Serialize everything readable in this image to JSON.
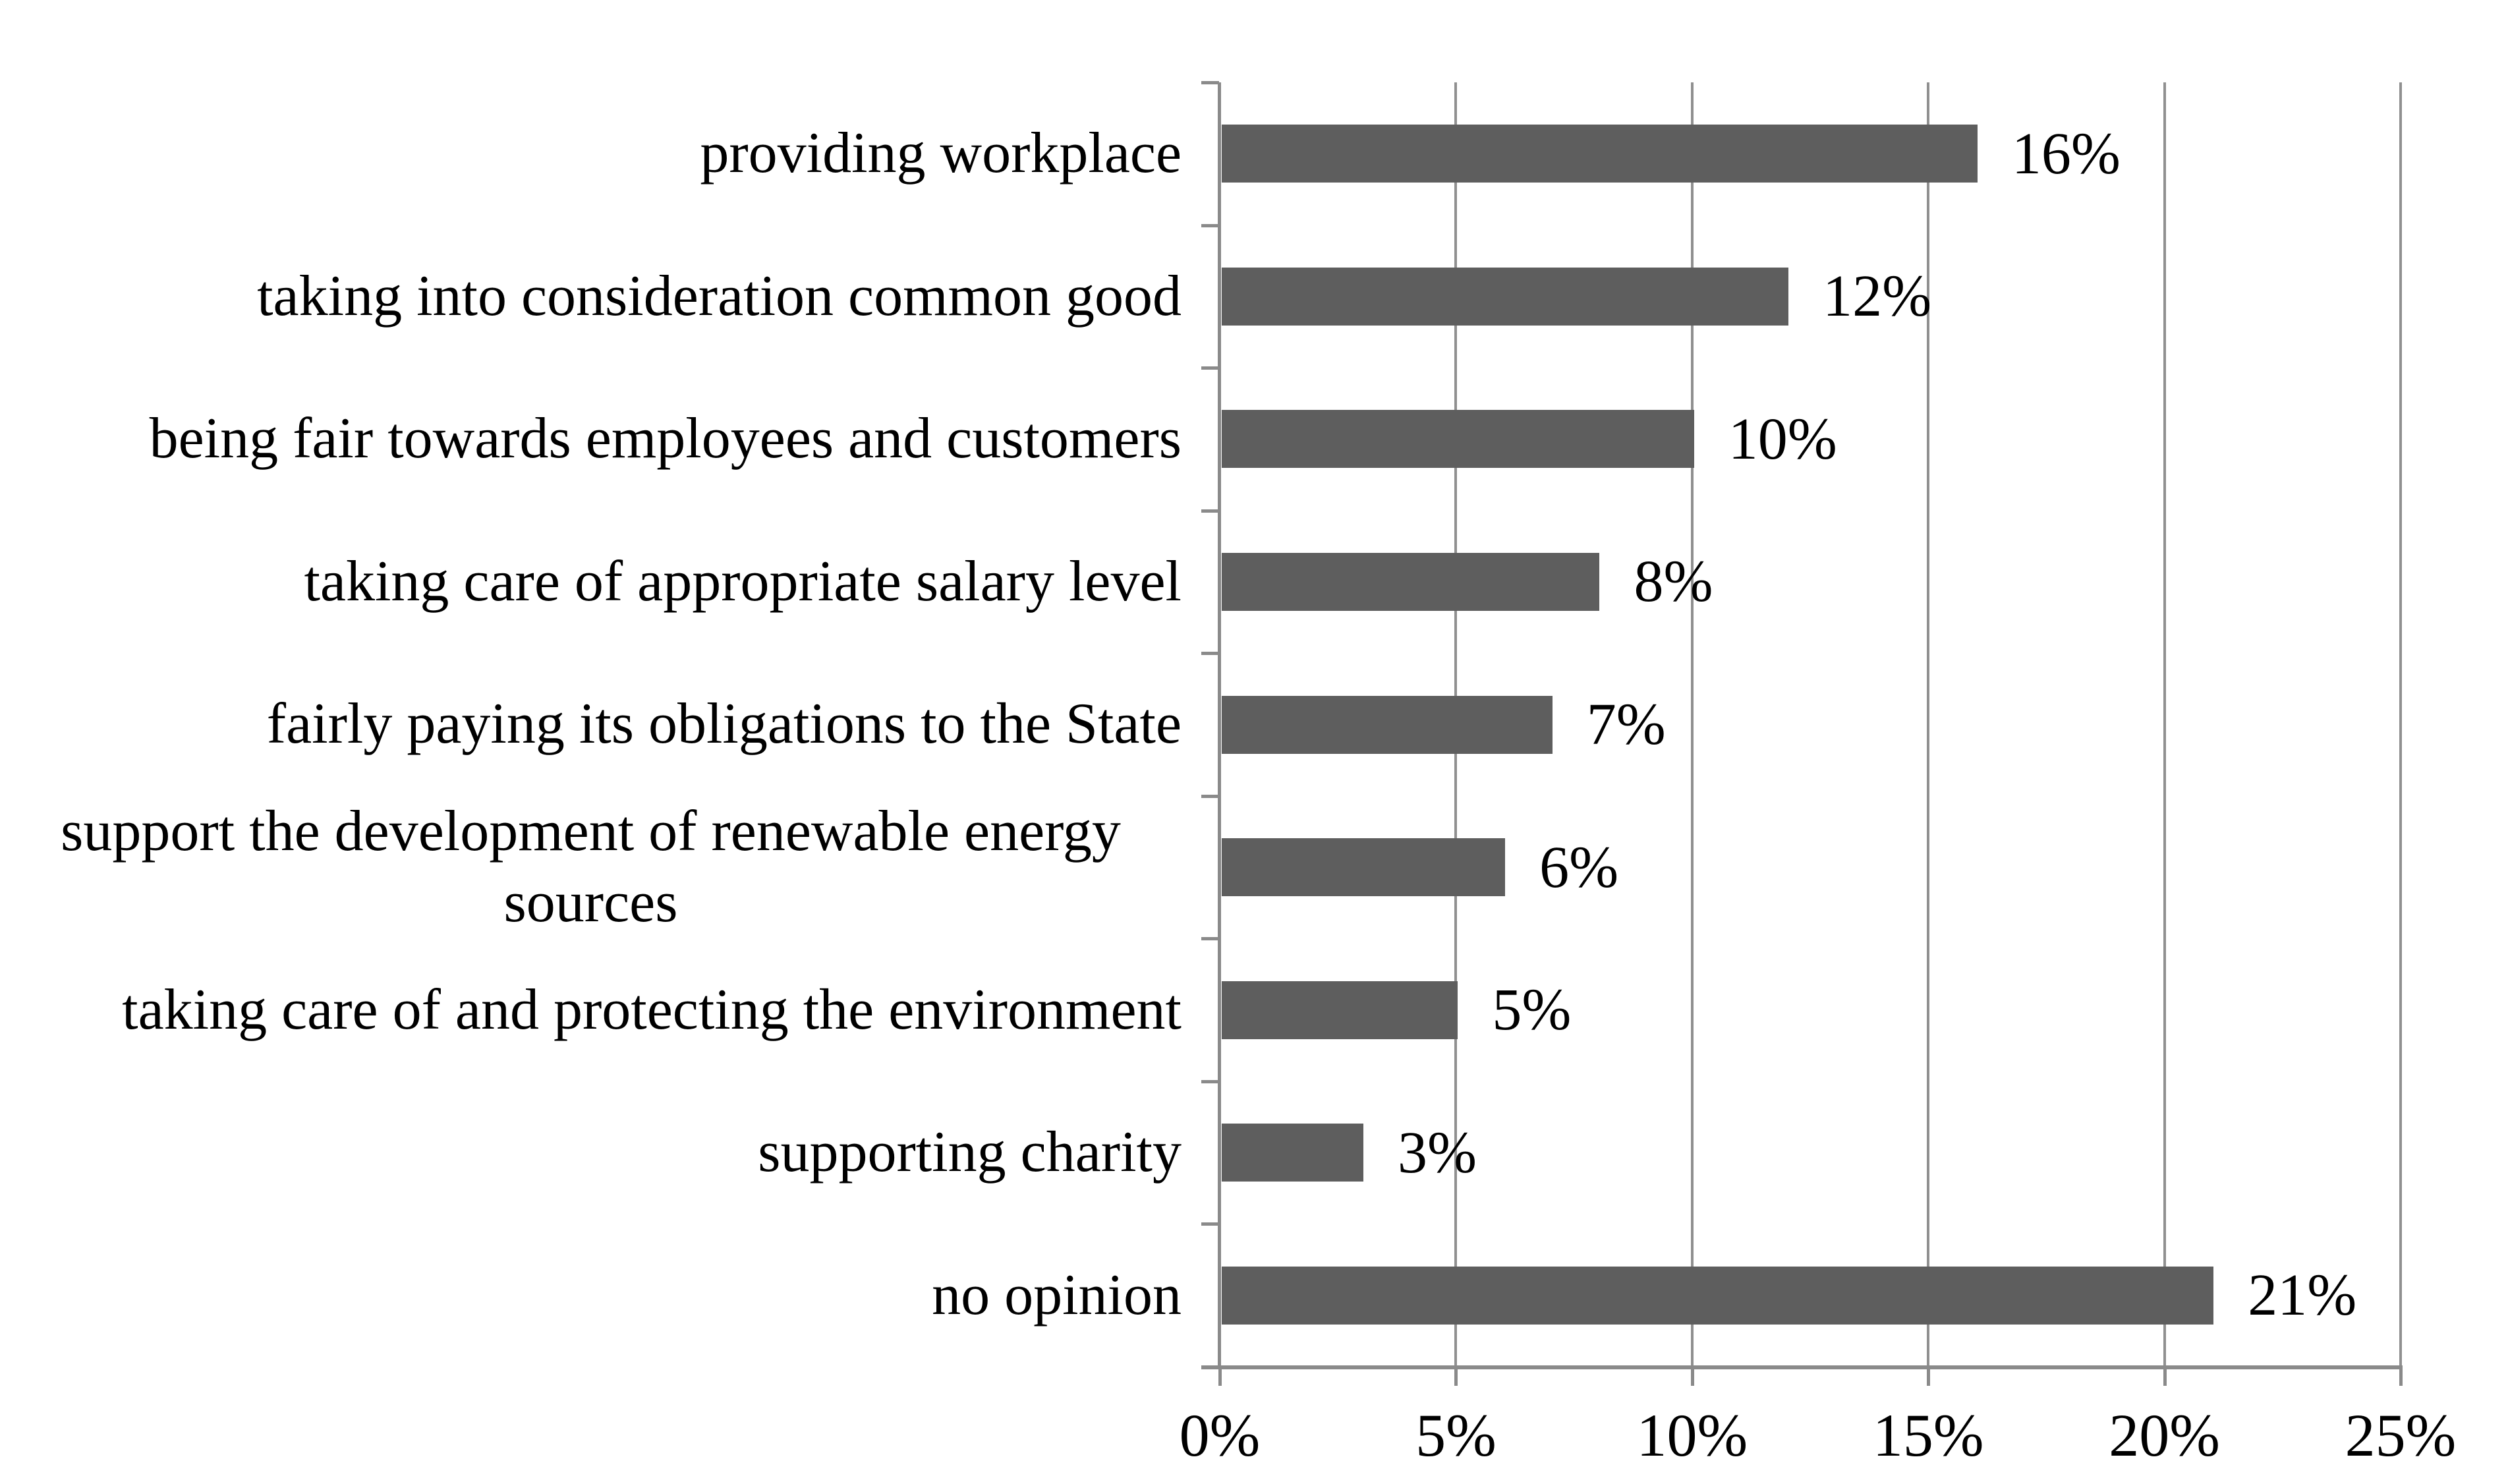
{
  "chart_data": {
    "type": "bar",
    "orientation": "horizontal",
    "title": "",
    "xlabel": "",
    "ylabel": "",
    "categories": [
      "providing workplace",
      "taking into consideration common good",
      "being fair towards employees and customers",
      "taking care of appropriate salary level",
      "fairly paying its obligations to the State",
      "support the development of renewable energy\nsources",
      "taking care of and protecting the environment",
      "supporting charity",
      "no opinion"
    ],
    "values": [
      16,
      12,
      10,
      8,
      7,
      6,
      5,
      3,
      21
    ],
    "value_labels": [
      "16%",
      "12%",
      "10%",
      "8%",
      "7%",
      "6%",
      "5%",
      "3%",
      "21%"
    ],
    "xlim": [
      0,
      25
    ],
    "x_ticks": [
      0,
      5,
      10,
      15,
      20,
      25
    ],
    "x_tick_labels": [
      "0%",
      "5%",
      "10%",
      "15%",
      "20%",
      "25%"
    ],
    "grid": "vertical-only",
    "legend": "none",
    "data_labels": "outside-end",
    "colors": {
      "bar": "#5e5e5e",
      "gridline": "#909090",
      "axis": "#8a8a8a",
      "tick": "#8a8a8a",
      "text": "#000000",
      "background": "#ffffff"
    }
  }
}
